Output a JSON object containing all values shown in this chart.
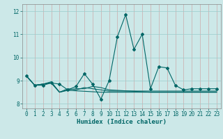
{
  "xlabel": "Humidex (Indice chaleur)",
  "background_color": "#cce8e8",
  "line_color": "#006666",
  "grid_color": "#99cccc",
  "xlim": [
    -0.5,
    23.5
  ],
  "ylim": [
    7.8,
    12.3
  ],
  "yticks": [
    8,
    9,
    10,
    11,
    12
  ],
  "xticks": [
    0,
    1,
    2,
    3,
    4,
    5,
    6,
    7,
    8,
    9,
    10,
    11,
    12,
    13,
    14,
    15,
    16,
    17,
    18,
    19,
    20,
    21,
    22,
    23
  ],
  "tick_fontsize": 5.5,
  "xlabel_fontsize": 6.5,
  "series": [
    [
      9.2,
      8.8,
      8.8,
      8.9,
      8.85,
      8.6,
      8.75,
      9.3,
      8.85,
      8.2,
      9.0,
      10.9,
      11.85,
      10.35,
      11.0,
      8.65,
      9.6,
      9.55,
      8.8,
      8.6,
      8.65,
      8.65,
      8.65,
      8.65
    ],
    [
      9.2,
      8.8,
      8.85,
      8.9,
      8.5,
      8.65,
      8.6,
      8.7,
      8.65,
      8.6,
      8.55,
      8.55,
      8.55,
      8.55,
      8.55,
      8.55,
      8.55,
      8.55,
      8.55,
      8.55,
      8.55,
      8.55,
      8.55,
      8.55
    ],
    [
      9.2,
      8.8,
      8.85,
      8.95,
      8.5,
      8.6,
      8.65,
      8.65,
      8.75,
      8.7,
      8.6,
      8.58,
      8.56,
      8.54,
      8.52,
      8.5,
      8.5,
      8.5,
      8.5,
      8.5,
      8.5,
      8.5,
      8.5,
      8.5
    ],
    [
      9.2,
      8.8,
      8.85,
      8.9,
      8.5,
      8.58,
      8.56,
      8.54,
      8.52,
      8.5,
      8.5,
      8.5,
      8.5,
      8.5,
      8.5,
      8.5,
      8.5,
      8.5,
      8.5,
      8.5,
      8.5,
      8.5,
      8.5,
      8.5
    ]
  ]
}
